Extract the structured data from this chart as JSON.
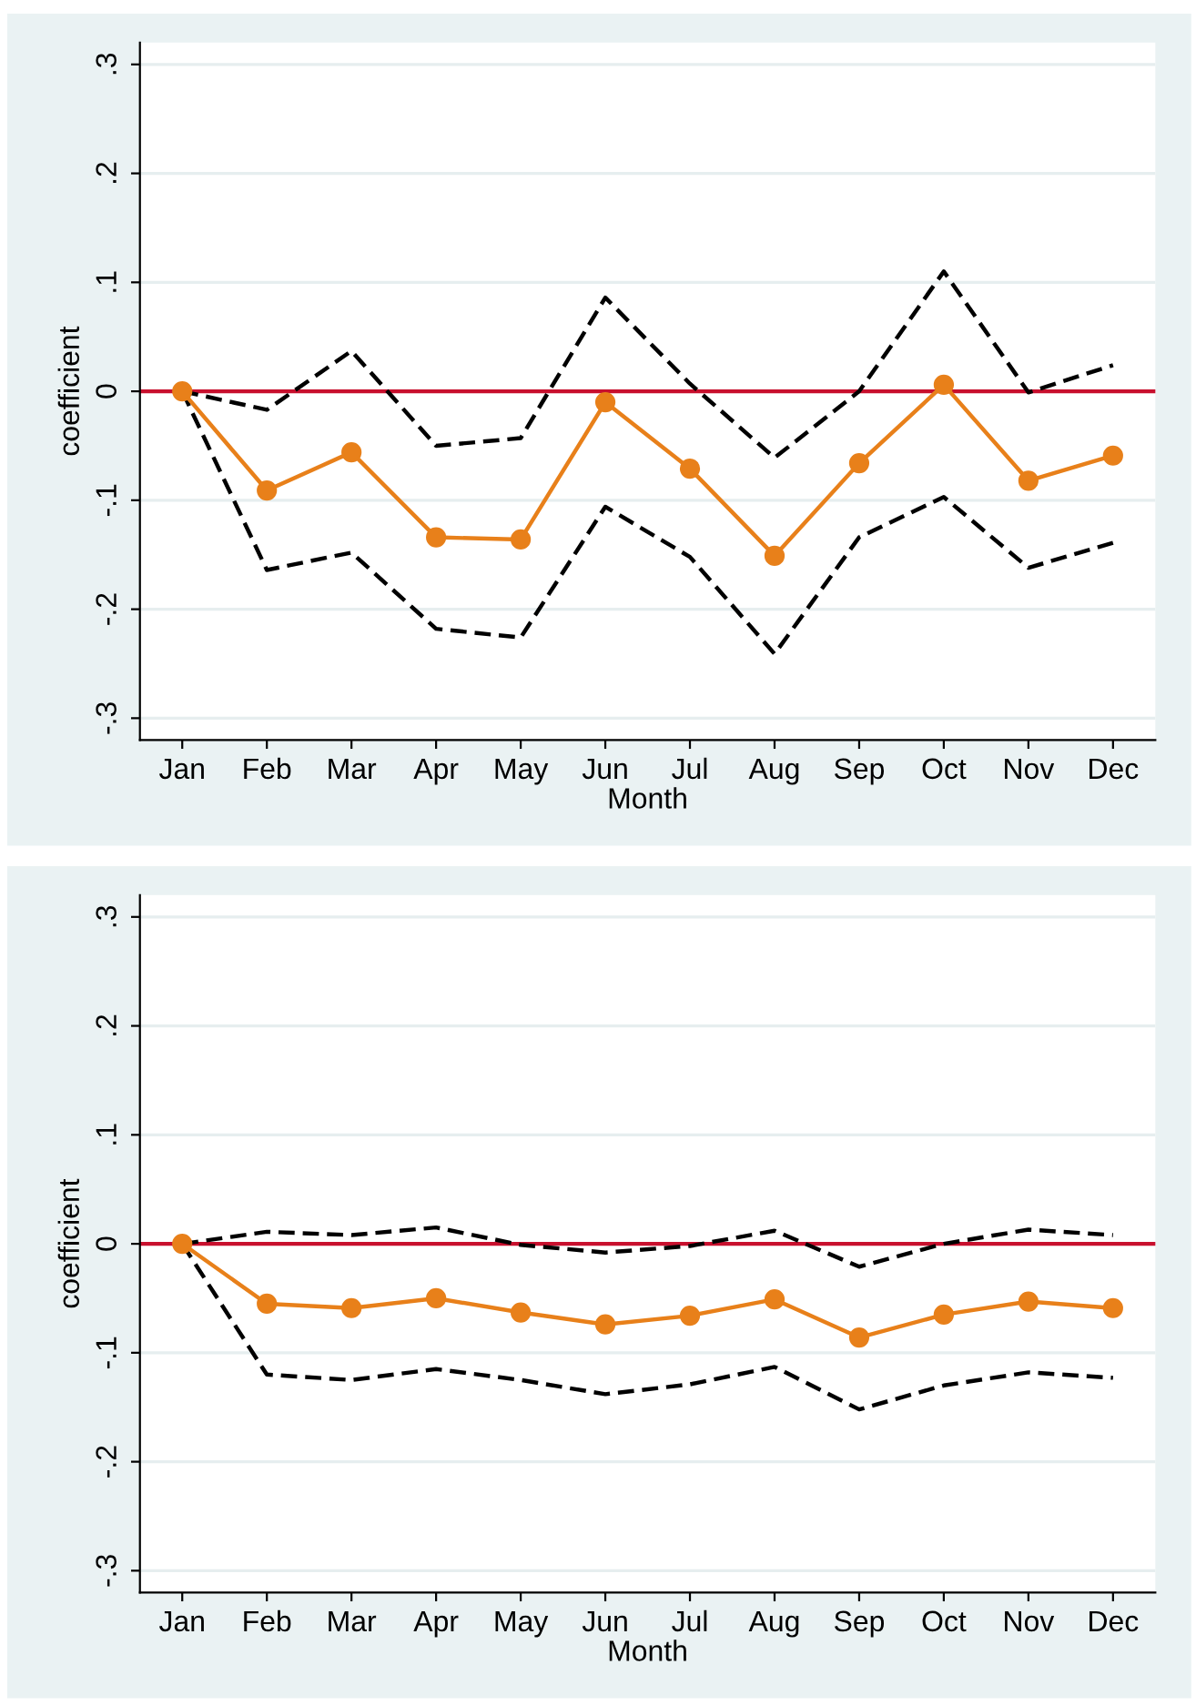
{
  "chart_data": [
    {
      "type": "line",
      "xlabel": "Month",
      "ylabel": "coefficient",
      "categories": [
        "Jan",
        "Feb",
        "Mar",
        "Apr",
        "May",
        "Jun",
        "Jul",
        "Aug",
        "Sep",
        "Oct",
        "Nov",
        "Dec"
      ],
      "series": [
        {
          "color": "#000000",
          "line_style": "dashed",
          "marker": "none",
          "values": [
            0,
            -0.017,
            0.037,
            -0.05,
            -0.043,
            0.086,
            0.007,
            -0.061,
            0.0,
            0.11,
            -0.001,
            0.024
          ]
        },
        {
          "color": "#000000",
          "line_style": "dashed",
          "marker": "none",
          "values": [
            0,
            -0.164,
            -0.148,
            -0.218,
            -0.226,
            -0.106,
            -0.152,
            -0.241,
            -0.134,
            -0.097,
            -0.162,
            -0.139
          ]
        },
        {
          "color": "#e8801a",
          "line_style": "solid",
          "marker": "circle",
          "values": [
            0,
            -0.091,
            -0.056,
            -0.134,
            -0.136,
            -0.01,
            -0.071,
            -0.151,
            -0.066,
            0.006,
            -0.082,
            -0.059
          ]
        }
      ],
      "ylim": [
        -0.32,
        0.32
      ],
      "yticks": [
        {
          "value": -0.3,
          "label": "-.3"
        },
        {
          "value": -0.2,
          "label": "-.2"
        },
        {
          "value": -0.1,
          "label": "-.1"
        },
        0,
        {
          "value": 0.1,
          "label": ".1"
        },
        {
          "value": 0.2,
          "label": ".2"
        },
        {
          "value": 0.3,
          "label": ".3"
        }
      ],
      "ref_lines": [
        {
          "axis": "y",
          "value": 0,
          "color": "#c8102e"
        }
      ],
      "grid": "y"
    },
    {
      "type": "line",
      "xlabel": "Month",
      "ylabel": "coefficient",
      "categories": [
        "Jan",
        "Feb",
        "Mar",
        "Apr",
        "May",
        "Jun",
        "Jul",
        "Aug",
        "Sep",
        "Oct",
        "Nov",
        "Dec"
      ],
      "series": [
        {
          "color": "#000000",
          "line_style": "dashed",
          "marker": "none",
          "values": [
            0,
            0.011,
            0.008,
            0.015,
            -0.001,
            -0.008,
            -0.002,
            0.012,
            -0.021,
            0.0,
            0.013,
            0.008
          ]
        },
        {
          "color": "#000000",
          "line_style": "dashed",
          "marker": "none",
          "values": [
            0,
            -0.12,
            -0.125,
            -0.115,
            -0.125,
            -0.138,
            -0.129,
            -0.113,
            -0.152,
            -0.13,
            -0.118,
            -0.123
          ]
        },
        {
          "color": "#e8801a",
          "line_style": "solid",
          "marker": "circle",
          "values": [
            0,
            -0.055,
            -0.059,
            -0.05,
            -0.063,
            -0.074,
            -0.066,
            -0.051,
            -0.086,
            -0.065,
            -0.053,
            -0.059
          ]
        }
      ],
      "ylim": [
        -0.32,
        0.32
      ],
      "yticks": [
        {
          "value": -0.3,
          "label": "-.3"
        },
        {
          "value": -0.2,
          "label": "-.2"
        },
        {
          "value": -0.1,
          "label": "-.1"
        },
        0,
        {
          "value": 0.1,
          "label": ".1"
        },
        {
          "value": 0.2,
          "label": ".2"
        },
        {
          "value": 0.3,
          "label": ".3"
        }
      ],
      "ref_lines": [
        {
          "axis": "y",
          "value": 0,
          "color": "#c8102e"
        }
      ],
      "grid": "y"
    }
  ]
}
